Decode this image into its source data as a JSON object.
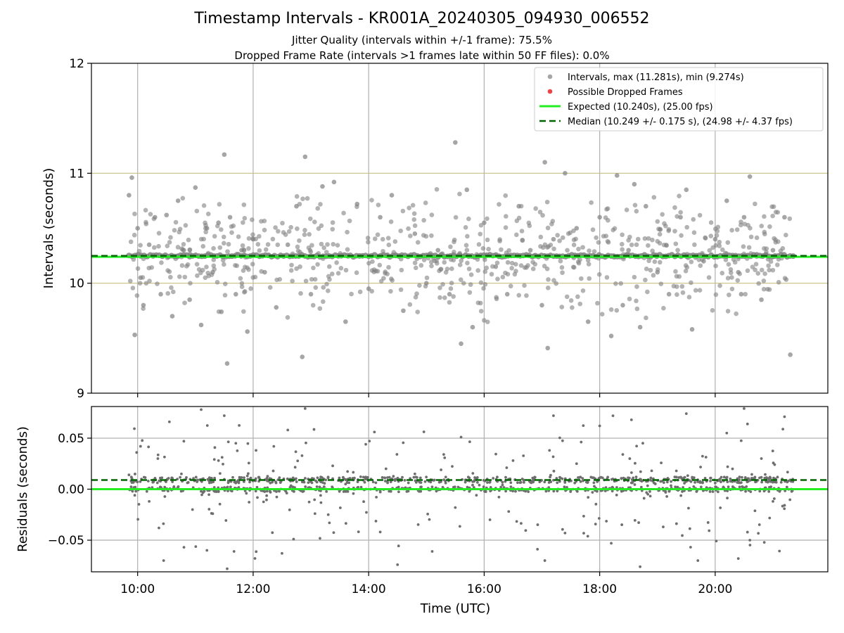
{
  "titles": {
    "main": "Timestamp Intervals - KR001A_20240305_094930_006552",
    "jitter": "Jitter Quality (intervals within +/-1 frame): 75.5%",
    "dropped": "Dropped Frame Rate (intervals >1 frames late within 50 FF files): 0.0%"
  },
  "colors": {
    "points": "#808080",
    "dropped": "#ee4444",
    "expected": "#22ee22",
    "median": "#006400",
    "gold_grid": "#c8c080",
    "grid": "#b0b0b0"
  },
  "chart_data": [
    {
      "type": "scatter",
      "ylabel": "Intervals (seconds)",
      "ylim": [
        9,
        12
      ],
      "yticks": [
        9,
        10,
        11,
        12
      ],
      "ytick_labels": [
        "9",
        "10",
        "11",
        "12"
      ],
      "hlines_gold": [
        10,
        11
      ],
      "grid": true,
      "legend_position": "top-right",
      "legend": [
        {
          "label": "Intervals, max (11.281s), min (9.274s)",
          "kind": "dot"
        },
        {
          "label": "Possible Dropped Frames",
          "kind": "dot-red"
        },
        {
          "label": "Expected (10.240s), (25.00 fps)",
          "kind": "line"
        },
        {
          "label": "Median (10.249 +/- 0.175 s), (24.98 +/- 4.37 fps)",
          "kind": "dashed"
        }
      ],
      "expected": 10.24,
      "median": 10.249,
      "max": 11.281,
      "min": 9.274,
      "series": [
        {
          "name": "Intervals, max (11.281s), min (9.274s)",
          "x": [
            9.85,
            9.9,
            9.95,
            10.0,
            10.05,
            10.1,
            10.2,
            10.3,
            10.4,
            10.5,
            10.6,
            10.7,
            10.8,
            10.9,
            11.0,
            11.1,
            11.2,
            11.3,
            11.4,
            11.45,
            11.5,
            11.55,
            11.6,
            11.7,
            11.8,
            11.9,
            12.0,
            12.2,
            12.4,
            12.6,
            12.75,
            12.85,
            12.9,
            13.0,
            13.2,
            13.4,
            13.6,
            13.8,
            14.0,
            14.2,
            14.4,
            14.6,
            14.8,
            15.0,
            15.2,
            15.4,
            15.5,
            15.6,
            15.7,
            15.8,
            16.0,
            16.2,
            16.4,
            16.6,
            16.8,
            17.0,
            17.05,
            17.1,
            17.2,
            17.4,
            17.6,
            17.8,
            18.0,
            18.2,
            18.3,
            18.4,
            18.5,
            18.6,
            18.7,
            18.8,
            19.0,
            19.2,
            19.4,
            19.5,
            19.6,
            19.8,
            20.0,
            20.2,
            20.4,
            20.45,
            20.5,
            20.6,
            20.8,
            21.0,
            21.2,
            21.3
          ],
          "y": [
            10.8,
            10.96,
            9.53,
            10.5,
            10.05,
            9.8,
            10.35,
            10.6,
            9.9,
            10.62,
            9.7,
            10.75,
            10.3,
            9.85,
            10.87,
            9.62,
            10.5,
            10.1,
            10.55,
            9.74,
            11.17,
            9.27,
            10.6,
            9.9,
            10.3,
            9.56,
            10.4,
            10.1,
            9.78,
            10.35,
            10.7,
            9.33,
            11.15,
            9.9,
            10.88,
            10.92,
            9.65,
            10.72,
            9.95,
            10.6,
            10.8,
            9.75,
            10.45,
            10.0,
            10.3,
            9.9,
            11.28,
            9.45,
            10.85,
            9.6,
            10.55,
            10.15,
            9.9,
            10.7,
            10.3,
            9.8,
            11.1,
            9.41,
            10.4,
            11.0,
            10.5,
            9.65,
            10.6,
            9.52,
            10.98,
            9.8,
            10.3,
            10.9,
            9.6,
            10.7,
            10.1,
            9.9,
            10.6,
            10.85,
            9.58,
            10.2,
            10.4,
            10.75,
            10.1,
            9.9,
            10.6,
            10.97,
            9.85,
            10.3,
            10.6,
            9.35
          ]
        },
        {
          "name": "Median (10.249 +/- 0.175 s), (24.98 +/- 4.37 fps)",
          "x": [
            9.85,
            21.35
          ],
          "y": [
            10.249,
            10.249
          ]
        },
        {
          "name": "Expected (10.240s), (25.00 fps)",
          "x": [
            9.2,
            21.95
          ],
          "y": [
            10.24,
            10.24
          ]
        }
      ]
    },
    {
      "type": "scatter",
      "xlabel": "Time (UTC)",
      "ylabel": "Residuals (seconds)",
      "xlim": [
        9.2,
        21.95
      ],
      "ylim": [
        -0.081,
        0.081
      ],
      "xticks": [
        10,
        12,
        14,
        16,
        18,
        20
      ],
      "xtick_labels": [
        "10:00",
        "12:00",
        "14:00",
        "16:00",
        "18:00",
        "20:00"
      ],
      "yticks": [
        -0.05,
        0.0,
        0.05
      ],
      "ytick_labels": [
        "−0.05",
        "0.00",
        "0.05"
      ],
      "grid": true,
      "expected": 0.0,
      "median": 0.009,
      "series": [
        {
          "name": "Residuals",
          "x": [
            9.85,
            9.95,
            10.05,
            10.2,
            10.35,
            10.45,
            10.55,
            10.7,
            10.8,
            10.95,
            11.1,
            11.2,
            11.3,
            11.4,
            11.5,
            11.55,
            11.7,
            11.9,
            12.05,
            12.3,
            12.6,
            12.7,
            12.9,
            13.0,
            13.3,
            13.6,
            13.95,
            14.1,
            14.2,
            14.3,
            14.5,
            14.8,
            15.1,
            15.3,
            15.5,
            15.6,
            15.8,
            16.1,
            16.5,
            16.9,
            17.05,
            17.2,
            17.4,
            17.6,
            17.8,
            18.0,
            18.2,
            18.4,
            18.55,
            18.7,
            18.9,
            19.1,
            19.3,
            19.5,
            19.7,
            20.0,
            20.2,
            20.4,
            20.5,
            20.6,
            20.8,
            21.0,
            21.2,
            21.3
          ],
          "y": [
            0.014,
            -0.006,
            0.042,
            -0.012,
            0.03,
            -0.07,
            0.066,
            0.002,
            0.047,
            -0.02,
            0.078,
            -0.06,
            -0.024,
            0.028,
            0.072,
            -0.078,
            0.045,
            0.013,
            0.038,
            -0.003,
            0.058,
            -0.049,
            0.079,
            0.008,
            -0.025,
            0.005,
            0.044,
            0.056,
            -0.042,
            0.02,
            -0.074,
            0.015,
            -0.061,
            0.034,
            -0.018,
            0.051,
            0.004,
            -0.03,
            0.028,
            0.0,
            -0.07,
            0.072,
            -0.043,
            0.025,
            -0.008,
            0.062,
            -0.053,
            0.034,
            0.068,
            -0.076,
            0.018,
            -0.037,
            0.012,
            0.074,
            -0.07,
            0.006,
            0.055,
            -0.068,
            0.079,
            -0.05,
            0.03,
            -0.012,
            0.071,
            0.009
          ]
        }
      ]
    }
  ]
}
